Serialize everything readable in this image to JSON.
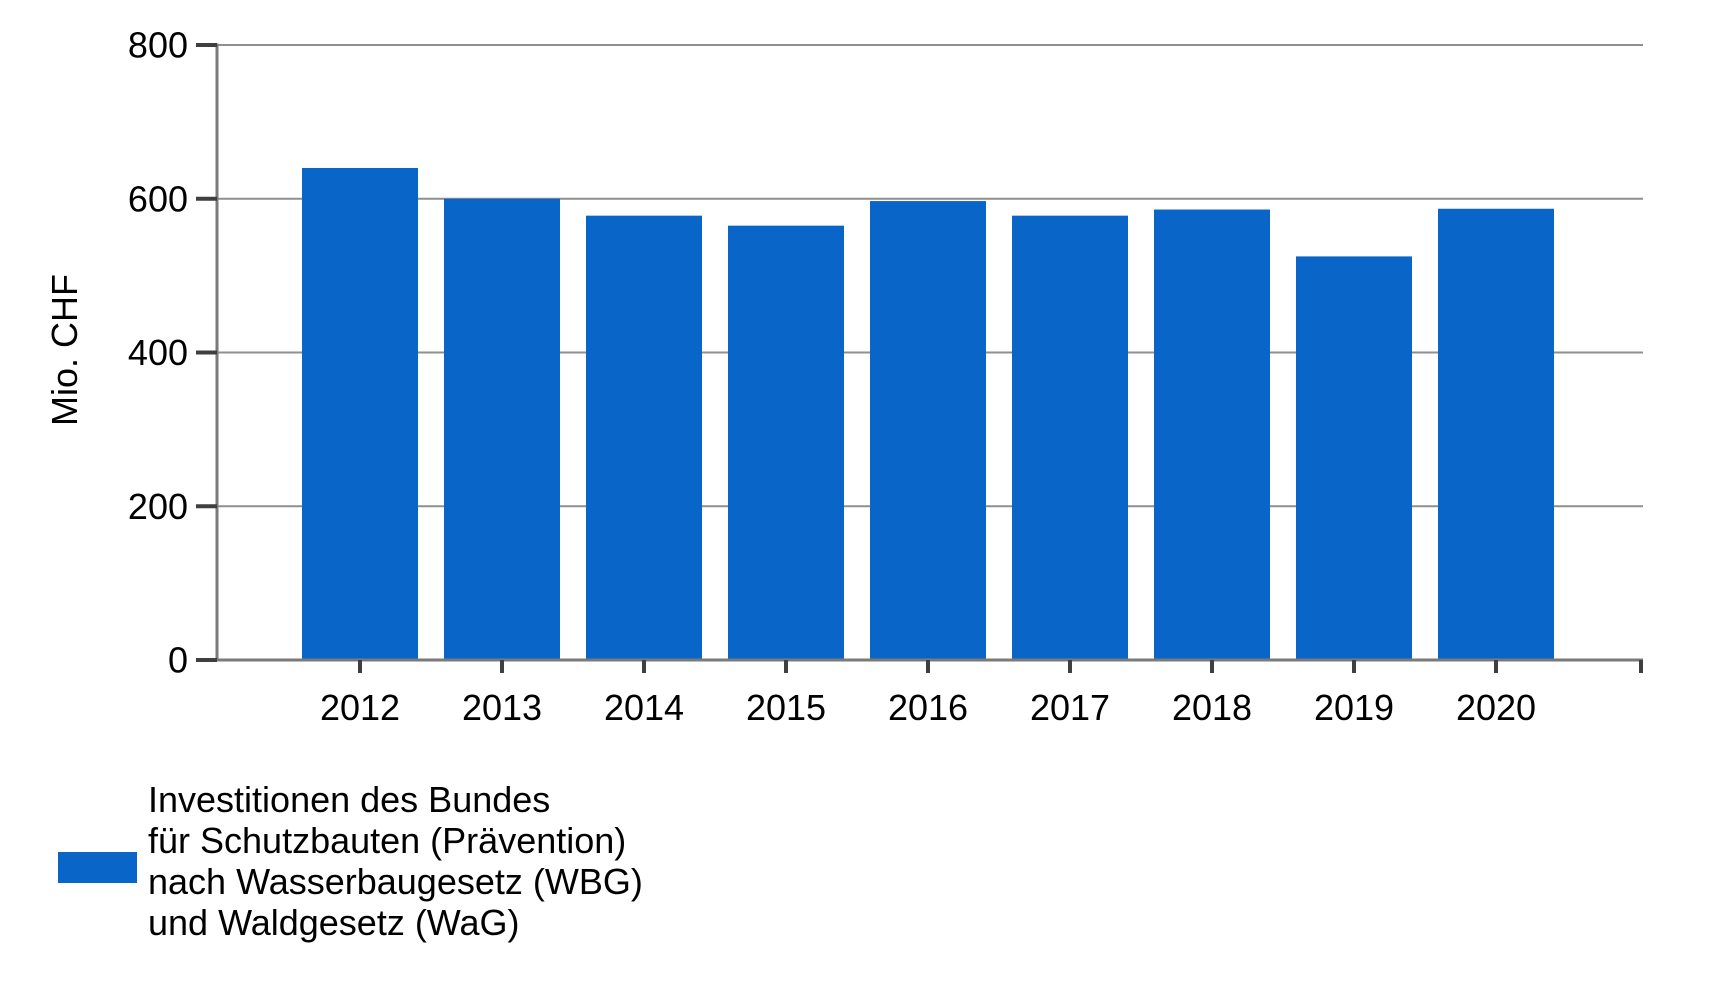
{
  "chart_data": {
    "type": "bar",
    "title": "",
    "categories": [
      "2012",
      "2013",
      "2014",
      "2015",
      "2016",
      "2017",
      "2018",
      "2019",
      "2020"
    ],
    "values": [
      640,
      600,
      578,
      565,
      597,
      578,
      586,
      525,
      587
    ],
    "xlabel": "",
    "ylabel": "Mio. CHF",
    "ylim": [
      0,
      800
    ],
    "yticks": [
      0,
      200,
      400,
      600,
      800
    ],
    "grid": "horizontal",
    "legend_position": "bottom-left",
    "legend_lines": [
      "Investitionen des Bundes",
      "für Schutzbauten (Prävention)",
      "nach Wasserbaugesetz (WBG)",
      "und Waldgesetz (WaG)"
    ]
  },
  "colors": {
    "bar": "#0a65c8",
    "gridline": "#8f8f8f",
    "axis": "#7a7a7a",
    "tick": "#3f3f3f",
    "text": "#000000",
    "background": "#ffffff"
  }
}
